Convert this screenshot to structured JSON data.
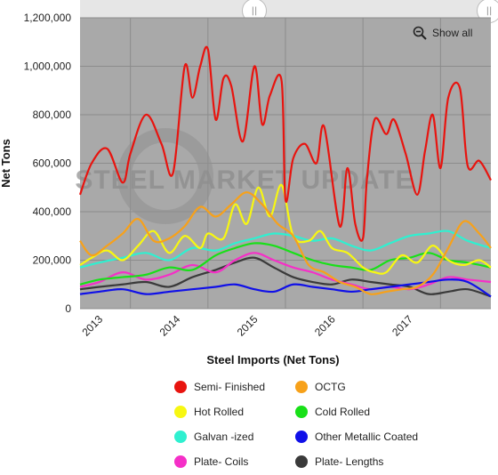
{
  "chart_data": {
    "type": "line",
    "title": "",
    "xlabel": "Steel Imports (Net Tons)",
    "ylabel": "Net Tons",
    "ylim": [
      0,
      1200000
    ],
    "y_ticks": [
      "0",
      "200,000",
      "400,000",
      "600,000",
      "800,000",
      "1,000,000",
      "1,200,000"
    ],
    "x_ticks": [
      "2013",
      "2014",
      "2015",
      "2016",
      "2017"
    ],
    "xlim": [
      2012.35,
      2017.65
    ],
    "grid": true,
    "legend_position": "bottom",
    "watermark": "STEEL MARKET UPDATE",
    "series": [
      {
        "name": "Semi- Finished",
        "color": "#e8140f",
        "x": [
          2012.35,
          2012.5,
          2012.7,
          2012.9,
          2013.0,
          2013.2,
          2013.4,
          2013.55,
          2013.7,
          2013.8,
          2013.9,
          2014.0,
          2014.1,
          2014.2,
          2014.3,
          2014.45,
          2014.6,
          2014.7,
          2014.8,
          2014.95,
          2015.0,
          2015.1,
          2015.25,
          2015.4,
          2015.5,
          2015.7,
          2015.8,
          2015.9,
          2016.0,
          2016.05,
          2016.15,
          2016.3,
          2016.4,
          2016.55,
          2016.7,
          2016.8,
          2016.9,
          2017.0,
          2017.1,
          2017.25,
          2017.35,
          2017.5,
          2017.65
        ],
        "y": [
          470000,
          600000,
          660000,
          520000,
          640000,
          800000,
          680000,
          560000,
          1000000,
          870000,
          1000000,
          1070000,
          780000,
          950000,
          920000,
          690000,
          1000000,
          760000,
          880000,
          940000,
          450000,
          620000,
          680000,
          600000,
          750000,
          340000,
          580000,
          350000,
          290000,
          530000,
          780000,
          720000,
          780000,
          640000,
          470000,
          650000,
          800000,
          580000,
          870000,
          910000,
          590000,
          610000,
          530000
        ]
      },
      {
        "name": "OCTG",
        "color": "#f7a11a",
        "x": [
          2012.35,
          2012.5,
          2012.7,
          2012.9,
          2013.1,
          2013.3,
          2013.5,
          2013.7,
          2013.9,
          2014.1,
          2014.3,
          2014.5,
          2014.7,
          2014.9,
          2015.1,
          2015.3,
          2015.5,
          2015.7,
          2015.9,
          2016.1,
          2016.3,
          2016.5,
          2016.7,
          2016.9,
          2017.1,
          2017.3,
          2017.5,
          2017.65
        ],
        "y": [
          280000,
          220000,
          260000,
          310000,
          370000,
          280000,
          290000,
          340000,
          420000,
          380000,
          430000,
          480000,
          430000,
          350000,
          300000,
          180000,
          150000,
          110000,
          90000,
          60000,
          70000,
          80000,
          90000,
          140000,
          250000,
          360000,
          310000,
          250000
        ]
      },
      {
        "name": "Hot Rolled",
        "color": "#f7f712",
        "x": [
          2012.35,
          2012.5,
          2012.7,
          2012.9,
          2013.1,
          2013.3,
          2013.5,
          2013.7,
          2013.9,
          2014.0,
          2014.2,
          2014.35,
          2014.5,
          2014.65,
          2014.8,
          2014.95,
          2015.1,
          2015.3,
          2015.45,
          2015.6,
          2015.8,
          2016.0,
          2016.15,
          2016.3,
          2016.5,
          2016.7,
          2016.9,
          2017.1,
          2017.3,
          2017.5,
          2017.65
        ],
        "y": [
          180000,
          210000,
          240000,
          200000,
          260000,
          320000,
          230000,
          300000,
          250000,
          310000,
          290000,
          430000,
          350000,
          500000,
          380000,
          510000,
          300000,
          280000,
          320000,
          250000,
          230000,
          170000,
          150000,
          150000,
          220000,
          190000,
          260000,
          200000,
          180000,
          200000,
          170000
        ]
      },
      {
        "name": "Cold Rolled",
        "color": "#18e018",
        "x": [
          2012.35,
          2012.6,
          2012.9,
          2013.2,
          2013.5,
          2013.8,
          2014.1,
          2014.35,
          2014.6,
          2014.85,
          2015.1,
          2015.35,
          2015.6,
          2015.85,
          2016.1,
          2016.35,
          2016.6,
          2016.85,
          2017.1,
          2017.35,
          2017.65
        ],
        "y": [
          100000,
          120000,
          130000,
          140000,
          170000,
          160000,
          220000,
          250000,
          270000,
          260000,
          230000,
          200000,
          180000,
          170000,
          160000,
          200000,
          210000,
          230000,
          200000,
          190000,
          170000
        ]
      },
      {
        "name": "Galvan -ized",
        "color": "#2ff0d0",
        "x": [
          2012.35,
          2012.6,
          2012.9,
          2013.2,
          2013.5,
          2013.8,
          2014.1,
          2014.35,
          2014.6,
          2014.85,
          2015.1,
          2015.35,
          2015.6,
          2015.85,
          2016.1,
          2016.35,
          2016.6,
          2016.85,
          2017.1,
          2017.35,
          2017.65
        ],
        "y": [
          170000,
          190000,
          210000,
          230000,
          200000,
          250000,
          240000,
          270000,
          290000,
          310000,
          300000,
          280000,
          290000,
          260000,
          240000,
          270000,
          300000,
          310000,
          320000,
          280000,
          250000
        ]
      },
      {
        "name": "Other Metallic Coated",
        "color": "#1010e8",
        "x": [
          2012.35,
          2012.6,
          2012.9,
          2013.2,
          2013.5,
          2013.8,
          2014.1,
          2014.35,
          2014.6,
          2014.85,
          2015.1,
          2015.35,
          2015.6,
          2015.85,
          2016.1,
          2016.35,
          2016.6,
          2016.85,
          2017.1,
          2017.35,
          2017.65
        ],
        "y": [
          60000,
          70000,
          80000,
          60000,
          70000,
          80000,
          90000,
          100000,
          80000,
          70000,
          100000,
          90000,
          80000,
          70000,
          80000,
          90000,
          100000,
          110000,
          120000,
          110000,
          50000
        ]
      },
      {
        "name": "Plate- Coils",
        "color": "#f52fc7",
        "x": [
          2012.35,
          2012.6,
          2012.9,
          2013.2,
          2013.5,
          2013.8,
          2014.1,
          2014.35,
          2014.6,
          2014.85,
          2015.1,
          2015.35,
          2015.6,
          2015.85,
          2016.1,
          2016.35,
          2016.6,
          2016.85,
          2017.1,
          2017.35,
          2017.65
        ],
        "y": [
          90000,
          110000,
          150000,
          120000,
          140000,
          180000,
          150000,
          200000,
          230000,
          200000,
          170000,
          150000,
          120000,
          100000,
          80000,
          90000,
          80000,
          100000,
          130000,
          120000,
          110000
        ]
      },
      {
        "name": "Plate- Lengths",
        "color": "#3a3a3a",
        "x": [
          2012.35,
          2012.6,
          2012.9,
          2013.2,
          2013.5,
          2013.8,
          2014.1,
          2014.35,
          2014.6,
          2014.85,
          2015.1,
          2015.35,
          2015.6,
          2015.85,
          2016.1,
          2016.35,
          2016.6,
          2016.85,
          2017.1,
          2017.35,
          2017.65
        ],
        "y": [
          80000,
          90000,
          100000,
          110000,
          90000,
          130000,
          160000,
          190000,
          210000,
          170000,
          130000,
          110000,
          100000,
          120000,
          110000,
          100000,
          90000,
          60000,
          70000,
          80000,
          50000
        ]
      }
    ]
  },
  "controls": {
    "show_all_label": "Show all"
  },
  "colors": {
    "plot_background": "#a9a9a9",
    "grid": "#8c8c8c"
  }
}
